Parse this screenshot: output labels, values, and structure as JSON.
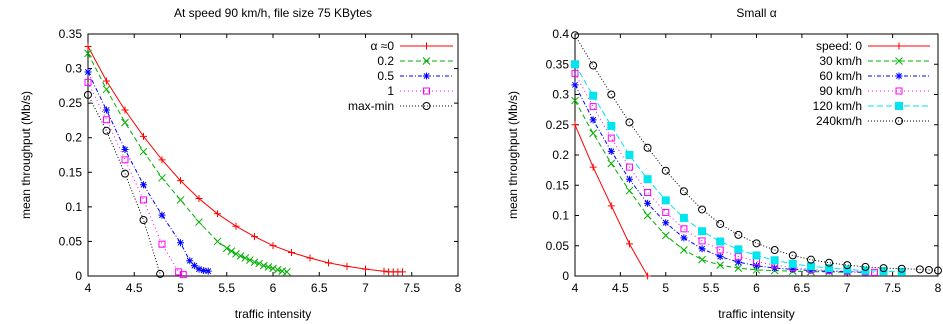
{
  "chart_data": [
    {
      "type": "line",
      "title": "At speed 90 km/h, file size 75 KBytes",
      "xlabel": "traffic intensity",
      "ylabel": "mean throughput (Mb/s)",
      "xlim": [
        4,
        8
      ],
      "ylim": [
        0,
        0.35
      ],
      "xticks": [
        "4",
        "4.5",
        "5",
        "5.5",
        "6",
        "6.5",
        "7",
        "7.5",
        "8"
      ],
      "yticks": [
        "0",
        "0.05",
        "0.1",
        "0.15",
        "0.2",
        "0.25",
        "0.3",
        "0.35"
      ],
      "legend_position": "top-right",
      "series": [
        {
          "name": "α ≈0",
          "color": "#ff0000",
          "marker": "plus",
          "dash": "",
          "x": [
            4.0,
            4.2,
            4.4,
            4.6,
            4.8,
            5.0,
            5.2,
            5.4,
            5.6,
            5.8,
            6.0,
            6.2,
            6.4,
            6.6,
            6.8,
            7.0,
            7.2,
            7.25,
            7.3,
            7.35,
            7.4
          ],
          "y": [
            0.332,
            0.282,
            0.24,
            0.202,
            0.168,
            0.138,
            0.112,
            0.09,
            0.072,
            0.057,
            0.044,
            0.034,
            0.026,
            0.019,
            0.014,
            0.01,
            0.007,
            0.006,
            0.006,
            0.006,
            0.006
          ]
        },
        {
          "name": "0.2",
          "color": "#00b000",
          "marker": "x",
          "dash": "5,3",
          "x": [
            4.0,
            4.2,
            4.4,
            4.6,
            4.8,
            5.0,
            5.2,
            5.4,
            5.5,
            5.55,
            5.6,
            5.65,
            5.7,
            5.75,
            5.8,
            5.85,
            5.9,
            5.95,
            6.0,
            6.05,
            6.1,
            6.15
          ],
          "y": [
            0.322,
            0.27,
            0.222,
            0.18,
            0.142,
            0.11,
            0.078,
            0.05,
            0.04,
            0.036,
            0.032,
            0.029,
            0.026,
            0.023,
            0.02,
            0.018,
            0.015,
            0.013,
            0.011,
            0.009,
            0.007,
            0.006
          ]
        },
        {
          "name": "0.5",
          "color": "#0000ff",
          "marker": "star",
          "dash": "4,2,1,2",
          "x": [
            4.0,
            4.2,
            4.4,
            4.6,
            4.8,
            5.0,
            5.1,
            5.15,
            5.2,
            5.25,
            5.3
          ],
          "y": [
            0.295,
            0.24,
            0.183,
            0.132,
            0.088,
            0.048,
            0.022,
            0.015,
            0.01,
            0.008,
            0.007
          ]
        },
        {
          "name": "1",
          "color": "#ff00ff",
          "marker": "square",
          "dash": "1,3",
          "x": [
            4.0,
            4.2,
            4.4,
            4.6,
            4.8,
            4.98,
            5.03
          ],
          "y": [
            0.28,
            0.226,
            0.168,
            0.11,
            0.046,
            0.006,
            0.002
          ]
        },
        {
          "name": "max-min",
          "color": "#000000",
          "marker": "circle",
          "dash": "1,2",
          "x": [
            4.0,
            4.2,
            4.4,
            4.6,
            4.78
          ],
          "y": [
            0.262,
            0.21,
            0.148,
            0.081,
            0.003
          ]
        }
      ]
    },
    {
      "type": "line",
      "title": "Small α",
      "xlabel": "traffic intensity",
      "ylabel": "mean throughput (Mb/s)",
      "xlim": [
        4,
        8
      ],
      "ylim": [
        0,
        0.4
      ],
      "xticks": [
        "4",
        "4.5",
        "5",
        "5.5",
        "6",
        "6.5",
        "7",
        "7.5",
        "8"
      ],
      "yticks": [
        "0",
        "0.05",
        "0.1",
        "0.15",
        "0.2",
        "0.25",
        "0.3",
        "0.35",
        "0.4"
      ],
      "legend_position": "top-right",
      "series": [
        {
          "name": "speed: 0",
          "color": "#ff0000",
          "marker": "plus",
          "dash": "",
          "x": [
            4.0,
            4.2,
            4.4,
            4.6,
            4.8
          ],
          "y": [
            0.25,
            0.18,
            0.116,
            0.053,
            0.0
          ]
        },
        {
          "name": "30 km/h",
          "color": "#00b000",
          "marker": "x",
          "dash": "5,3",
          "x": [
            4.0,
            4.2,
            4.4,
            4.6,
            4.8,
            5.0,
            5.2,
            5.4,
            5.6,
            5.8,
            6.0,
            6.2,
            6.4,
            6.6,
            6.8,
            7.0
          ],
          "y": [
            0.29,
            0.236,
            0.186,
            0.141,
            0.1,
            0.067,
            0.043,
            0.027,
            0.018,
            0.013,
            0.01,
            0.009,
            0.008,
            0.007,
            0.007,
            0.006
          ]
        },
        {
          "name": "60 km/h",
          "color": "#0000ff",
          "marker": "star",
          "dash": "4,2,1,2",
          "x": [
            4.0,
            4.2,
            4.4,
            4.6,
            4.8,
            5.0,
            5.2,
            5.4,
            5.6,
            5.8,
            6.0,
            6.2,
            6.4,
            6.6,
            6.8,
            7.0,
            7.2
          ],
          "y": [
            0.316,
            0.258,
            0.206,
            0.16,
            0.12,
            0.088,
            0.063,
            0.045,
            0.032,
            0.023,
            0.017,
            0.013,
            0.011,
            0.009,
            0.008,
            0.007,
            0.006
          ]
        },
        {
          "name": "90 km/h",
          "color": "#ff00ff",
          "marker": "square",
          "dash": "1,3",
          "x": [
            4.0,
            4.2,
            4.4,
            4.6,
            4.8,
            5.0,
            5.2,
            5.4,
            5.6,
            5.8,
            6.0,
            6.2,
            6.4,
            6.6,
            6.8,
            7.0,
            7.2,
            7.3
          ],
          "y": [
            0.335,
            0.28,
            0.228,
            0.18,
            0.138,
            0.105,
            0.078,
            0.058,
            0.043,
            0.032,
            0.024,
            0.018,
            0.014,
            0.011,
            0.009,
            0.008,
            0.007,
            0.006
          ]
        },
        {
          "name": "120 km/h",
          "color": "#00e5ee",
          "marker": "filled-square",
          "dash": "6,3",
          "x": [
            4.0,
            4.2,
            4.4,
            4.6,
            4.8,
            5.0,
            5.2,
            5.4,
            5.6,
            5.8,
            6.0,
            6.2,
            6.4,
            6.6,
            6.8,
            7.0,
            7.2,
            7.4,
            7.6
          ],
          "y": [
            0.35,
            0.298,
            0.248,
            0.2,
            0.16,
            0.125,
            0.096,
            0.074,
            0.057,
            0.044,
            0.034,
            0.026,
            0.02,
            0.016,
            0.013,
            0.011,
            0.009,
            0.008,
            0.007
          ]
        },
        {
          "name": "240km/h",
          "color": "#000000",
          "marker": "circle",
          "dash": "1,2",
          "x": [
            4.0,
            4.2,
            4.4,
            4.6,
            4.8,
            5.0,
            5.2,
            5.4,
            5.6,
            5.8,
            6.0,
            6.2,
            6.4,
            6.6,
            6.8,
            7.0,
            7.2,
            7.4,
            7.6,
            7.8,
            7.9,
            8.0
          ],
          "y": [
            0.398,
            0.348,
            0.3,
            0.254,
            0.212,
            0.174,
            0.14,
            0.11,
            0.086,
            0.068,
            0.054,
            0.043,
            0.034,
            0.027,
            0.022,
            0.018,
            0.015,
            0.013,
            0.012,
            0.011,
            0.01,
            0.009
          ]
        }
      ]
    }
  ]
}
